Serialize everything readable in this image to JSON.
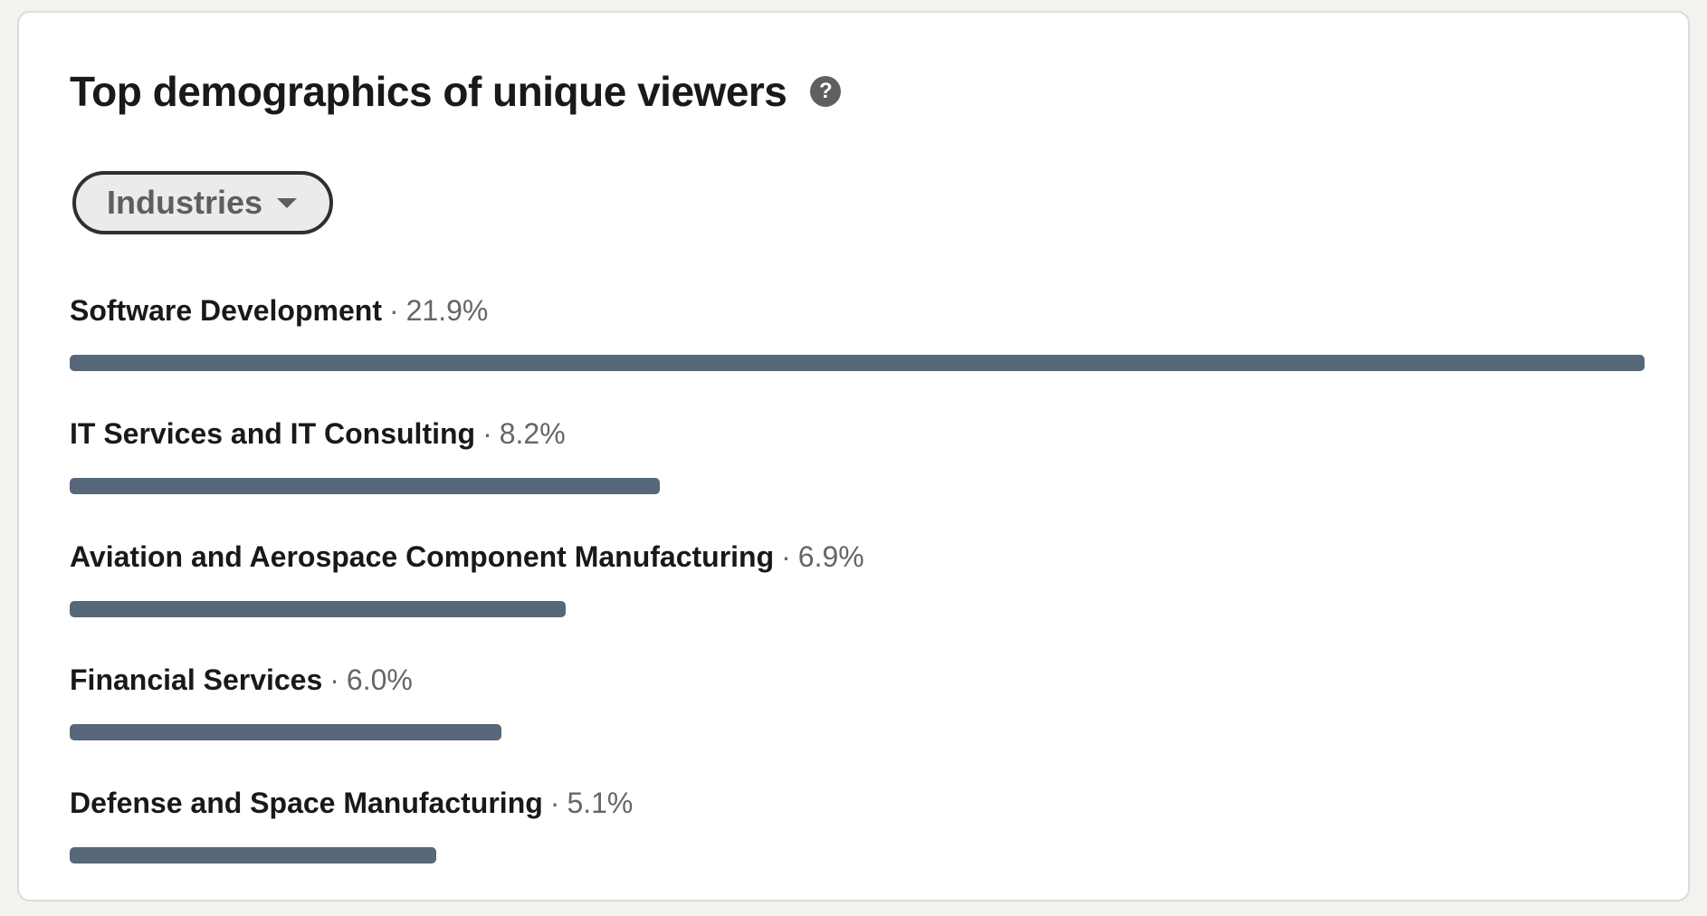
{
  "card": {
    "title": "Top demographics of unique viewers",
    "help_icon": "question-circle-icon"
  },
  "filter": {
    "selected": "Industries",
    "caret_icon": "caret-down-icon"
  },
  "separator": "·",
  "bar_color": "#56687a",
  "rows": [
    {
      "name": "Software Development",
      "value": "21.9%",
      "percent": 21.9
    },
    {
      "name": "IT Services and IT Consulting",
      "value": "8.2%",
      "percent": 8.2
    },
    {
      "name": "Aviation and Aerospace Component Manufacturing",
      "value": "6.9%",
      "percent": 6.9
    },
    {
      "name": "Financial Services",
      "value": "6.0%",
      "percent": 6.0
    },
    {
      "name": "Defense and Space Manufacturing",
      "value": "5.1%",
      "percent": 5.1
    }
  ]
}
